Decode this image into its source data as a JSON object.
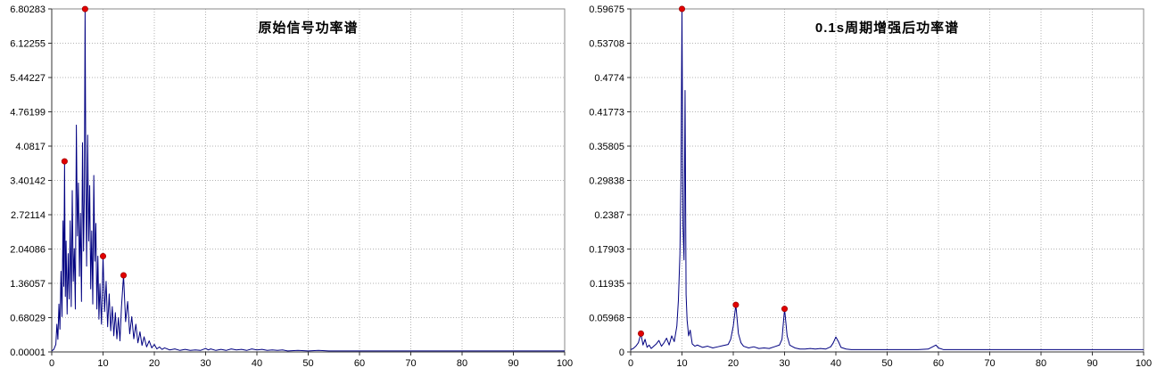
{
  "figure": {
    "description": "Two power spectrum plots side by side",
    "background": "#ffffff"
  },
  "chart_data": [
    {
      "type": "line",
      "title": "原始信号功率谱",
      "xlabel": "",
      "ylabel": "",
      "xlim": [
        0,
        100
      ],
      "ylim": [
        0,
        6.80283
      ],
      "x_ticks": [
        "0",
        "10",
        "20",
        "30",
        "40",
        "50",
        "60",
        "70",
        "80",
        "90",
        "100"
      ],
      "y_ticks": [
        "6.80283",
        "6.12255",
        "5.44227",
        "4.76199",
        "4.0817",
        "3.40142",
        "2.72114",
        "2.04086",
        "1.36057",
        "0.68029",
        "0.00001"
      ],
      "grid": "dotted",
      "legend": "none",
      "line_color": "#000080",
      "marker_color": "#e10000",
      "grid_color": "#b3b3b3",
      "axis_color": "#333333",
      "points": [
        [
          0,
          0.02
        ],
        [
          0.4,
          0.05
        ],
        [
          0.8,
          0.15
        ],
        [
          1.0,
          0.55
        ],
        [
          1.2,
          0.25
        ],
        [
          1.4,
          0.95
        ],
        [
          1.6,
          0.45
        ],
        [
          1.8,
          1.6
        ],
        [
          2.0,
          0.7
        ],
        [
          2.2,
          2.6
        ],
        [
          2.35,
          1.3
        ],
        [
          2.5,
          3.78
        ],
        [
          2.65,
          1.1
        ],
        [
          2.8,
          2.2
        ],
        [
          3.0,
          0.75
        ],
        [
          3.2,
          1.95
        ],
        [
          3.4,
          1.05
        ],
        [
          3.6,
          2.6
        ],
        [
          3.8,
          0.9
        ],
        [
          4.0,
          3.2
        ],
        [
          4.2,
          1.4
        ],
        [
          4.4,
          2.05
        ],
        [
          4.6,
          0.85
        ],
        [
          4.8,
          4.5
        ],
        [
          5.0,
          2.3
        ],
        [
          5.2,
          3.35
        ],
        [
          5.4,
          1.5
        ],
        [
          5.6,
          2.75
        ],
        [
          5.8,
          1.0
        ],
        [
          6.0,
          4.15
        ],
        [
          6.2,
          2.0
        ],
        [
          6.35,
          3.0
        ],
        [
          6.5,
          6.8
        ],
        [
          6.65,
          3.4
        ],
        [
          6.8,
          1.7
        ],
        [
          7.0,
          4.3
        ],
        [
          7.2,
          2.2
        ],
        [
          7.4,
          3.3
        ],
        [
          7.6,
          1.25
        ],
        [
          7.8,
          2.4
        ],
        [
          8.0,
          0.95
        ],
        [
          8.2,
          3.5
        ],
        [
          8.4,
          1.8
        ],
        [
          8.6,
          2.55
        ],
        [
          8.8,
          0.85
        ],
        [
          9.0,
          1.9
        ],
        [
          9.2,
          0.65
        ],
        [
          9.4,
          1.35
        ],
        [
          9.7,
          0.55
        ],
        [
          10,
          1.9
        ],
        [
          10.3,
          0.8
        ],
        [
          10.6,
          1.4
        ],
        [
          10.9,
          0.5
        ],
        [
          11.2,
          1.15
        ],
        [
          11.5,
          0.42
        ],
        [
          11.8,
          0.9
        ],
        [
          12.1,
          0.32
        ],
        [
          12.4,
          0.78
        ],
        [
          12.7,
          0.26
        ],
        [
          13.0,
          0.68
        ],
        [
          13.3,
          0.22
        ],
        [
          13.6,
          0.9
        ],
        [
          14.0,
          1.52
        ],
        [
          14.4,
          0.6
        ],
        [
          14.8,
          1.0
        ],
        [
          15.2,
          0.36
        ],
        [
          15.6,
          0.7
        ],
        [
          16.0,
          0.26
        ],
        [
          16.4,
          0.55
        ],
        [
          16.8,
          0.18
        ],
        [
          17.2,
          0.4
        ],
        [
          17.6,
          0.13
        ],
        [
          18.0,
          0.3
        ],
        [
          18.5,
          0.1
        ],
        [
          19.0,
          0.22
        ],
        [
          19.5,
          0.08
        ],
        [
          20.0,
          0.15
        ],
        [
          20.5,
          0.06
        ],
        [
          21.0,
          0.1
        ],
        [
          21.5,
          0.05
        ],
        [
          22.0,
          0.08
        ],
        [
          23,
          0.04
        ],
        [
          24,
          0.06
        ],
        [
          25,
          0.03
        ],
        [
          26,
          0.05
        ],
        [
          27,
          0.03
        ],
        [
          28,
          0.04
        ],
        [
          29,
          0.03
        ],
        [
          30,
          0.07
        ],
        [
          30.5,
          0.04
        ],
        [
          31,
          0.06
        ],
        [
          32,
          0.03
        ],
        [
          33,
          0.05
        ],
        [
          34,
          0.03
        ],
        [
          35,
          0.06
        ],
        [
          36,
          0.04
        ],
        [
          37,
          0.05
        ],
        [
          38,
          0.03
        ],
        [
          39,
          0.06
        ],
        [
          40,
          0.04
        ],
        [
          41,
          0.05
        ],
        [
          42,
          0.03
        ],
        [
          43,
          0.04
        ],
        [
          44,
          0.03
        ],
        [
          45,
          0.04
        ],
        [
          46,
          0.02
        ],
        [
          48,
          0.03
        ],
        [
          50,
          0.02
        ],
        [
          52,
          0.03
        ],
        [
          54,
          0.02
        ],
        [
          56,
          0.02
        ],
        [
          58,
          0.02
        ],
        [
          60,
          0.02
        ],
        [
          62,
          0.02
        ],
        [
          64,
          0.02
        ],
        [
          66,
          0.02
        ],
        [
          68,
          0.02
        ],
        [
          70,
          0.02
        ],
        [
          72,
          0.02
        ],
        [
          75,
          0.02
        ],
        [
          78,
          0.02
        ],
        [
          80,
          0.02
        ],
        [
          82,
          0.02
        ],
        [
          85,
          0.02
        ],
        [
          88,
          0.02
        ],
        [
          90,
          0.02
        ],
        [
          92,
          0.02
        ],
        [
          95,
          0.02
        ],
        [
          98,
          0.02
        ],
        [
          100,
          0.02
        ]
      ],
      "peak_markers": [
        [
          2.5,
          3.78
        ],
        [
          6.5,
          6.8
        ],
        [
          10,
          1.9
        ],
        [
          14,
          1.52
        ]
      ]
    },
    {
      "type": "line",
      "title": "0.1s周期增强后功率谱",
      "xlabel": "",
      "ylabel": "",
      "xlim": [
        0,
        100
      ],
      "ylim": [
        0,
        0.59675
      ],
      "x_ticks": [
        "0",
        "10",
        "20",
        "30",
        "40",
        "50",
        "60",
        "70",
        "80",
        "90",
        "100"
      ],
      "y_ticks": [
        "0.59675",
        "0.53708",
        "0.4774",
        "0.41773",
        "0.35805",
        "0.29838",
        "0.2387",
        "0.17903",
        "0.11935",
        "0.05968",
        "0"
      ],
      "grid": "dotted",
      "legend": "none",
      "line_color": "#000080",
      "marker_color": "#e10000",
      "grid_color": "#b3b3b3",
      "axis_color": "#333333",
      "points": [
        [
          0,
          0.004
        ],
        [
          0.5,
          0.006
        ],
        [
          1.0,
          0.01
        ],
        [
          1.5,
          0.016
        ],
        [
          2.0,
          0.032
        ],
        [
          2.4,
          0.012
        ],
        [
          2.8,
          0.022
        ],
        [
          3.2,
          0.008
        ],
        [
          3.6,
          0.012
        ],
        [
          4.0,
          0.006
        ],
        [
          4.5,
          0.01
        ],
        [
          5.0,
          0.014
        ],
        [
          5.5,
          0.02
        ],
        [
          6.0,
          0.01
        ],
        [
          6.5,
          0.016
        ],
        [
          7.0,
          0.024
        ],
        [
          7.5,
          0.012
        ],
        [
          8.0,
          0.028
        ],
        [
          8.5,
          0.018
        ],
        [
          9.0,
          0.045
        ],
        [
          9.3,
          0.09
        ],
        [
          9.6,
          0.17
        ],
        [
          9.8,
          0.3
        ],
        [
          10.0,
          0.59675
        ],
        [
          10.2,
          0.22
        ],
        [
          10.4,
          0.16
        ],
        [
          10.6,
          0.455
        ],
        [
          10.8,
          0.1
        ],
        [
          11.0,
          0.055
        ],
        [
          11.3,
          0.028
        ],
        [
          11.6,
          0.038
        ],
        [
          12.0,
          0.014
        ],
        [
          12.5,
          0.01
        ],
        [
          13,
          0.012
        ],
        [
          14,
          0.008
        ],
        [
          15,
          0.01
        ],
        [
          16,
          0.007
        ],
        [
          17,
          0.009
        ],
        [
          18,
          0.011
        ],
        [
          19,
          0.013
        ],
        [
          19.5,
          0.022
        ],
        [
          20,
          0.045
        ],
        [
          20.5,
          0.082
        ],
        [
          21,
          0.032
        ],
        [
          21.5,
          0.016
        ],
        [
          22,
          0.01
        ],
        [
          23,
          0.007
        ],
        [
          24,
          0.009
        ],
        [
          25,
          0.006
        ],
        [
          26,
          0.007
        ],
        [
          27,
          0.006
        ],
        [
          28,
          0.009
        ],
        [
          29,
          0.012
        ],
        [
          29.5,
          0.022
        ],
        [
          30,
          0.075
        ],
        [
          30.5,
          0.028
        ],
        [
          31,
          0.012
        ],
        [
          32,
          0.007
        ],
        [
          33,
          0.005
        ],
        [
          34,
          0.005
        ],
        [
          35,
          0.006
        ],
        [
          36,
          0.005
        ],
        [
          37,
          0.006
        ],
        [
          38,
          0.005
        ],
        [
          39,
          0.009
        ],
        [
          39.5,
          0.016
        ],
        [
          40,
          0.026
        ],
        [
          40.5,
          0.018
        ],
        [
          41,
          0.008
        ],
        [
          42,
          0.005
        ],
        [
          43,
          0.004
        ],
        [
          45,
          0.004
        ],
        [
          47,
          0.004
        ],
        [
          50,
          0.004
        ],
        [
          53,
          0.004
        ],
        [
          56,
          0.004
        ],
        [
          58,
          0.005
        ],
        [
          59.5,
          0.012
        ],
        [
          60,
          0.007
        ],
        [
          61,
          0.004
        ],
        [
          63,
          0.004
        ],
        [
          66,
          0.004
        ],
        [
          70,
          0.004
        ],
        [
          74,
          0.004
        ],
        [
          78,
          0.004
        ],
        [
          82,
          0.004
        ],
        [
          86,
          0.004
        ],
        [
          90,
          0.004
        ],
        [
          94,
          0.004
        ],
        [
          100,
          0.004
        ]
      ],
      "peak_markers": [
        [
          2.0,
          0.032
        ],
        [
          10.0,
          0.59675
        ],
        [
          20.5,
          0.082
        ],
        [
          30,
          0.075
        ]
      ]
    }
  ]
}
